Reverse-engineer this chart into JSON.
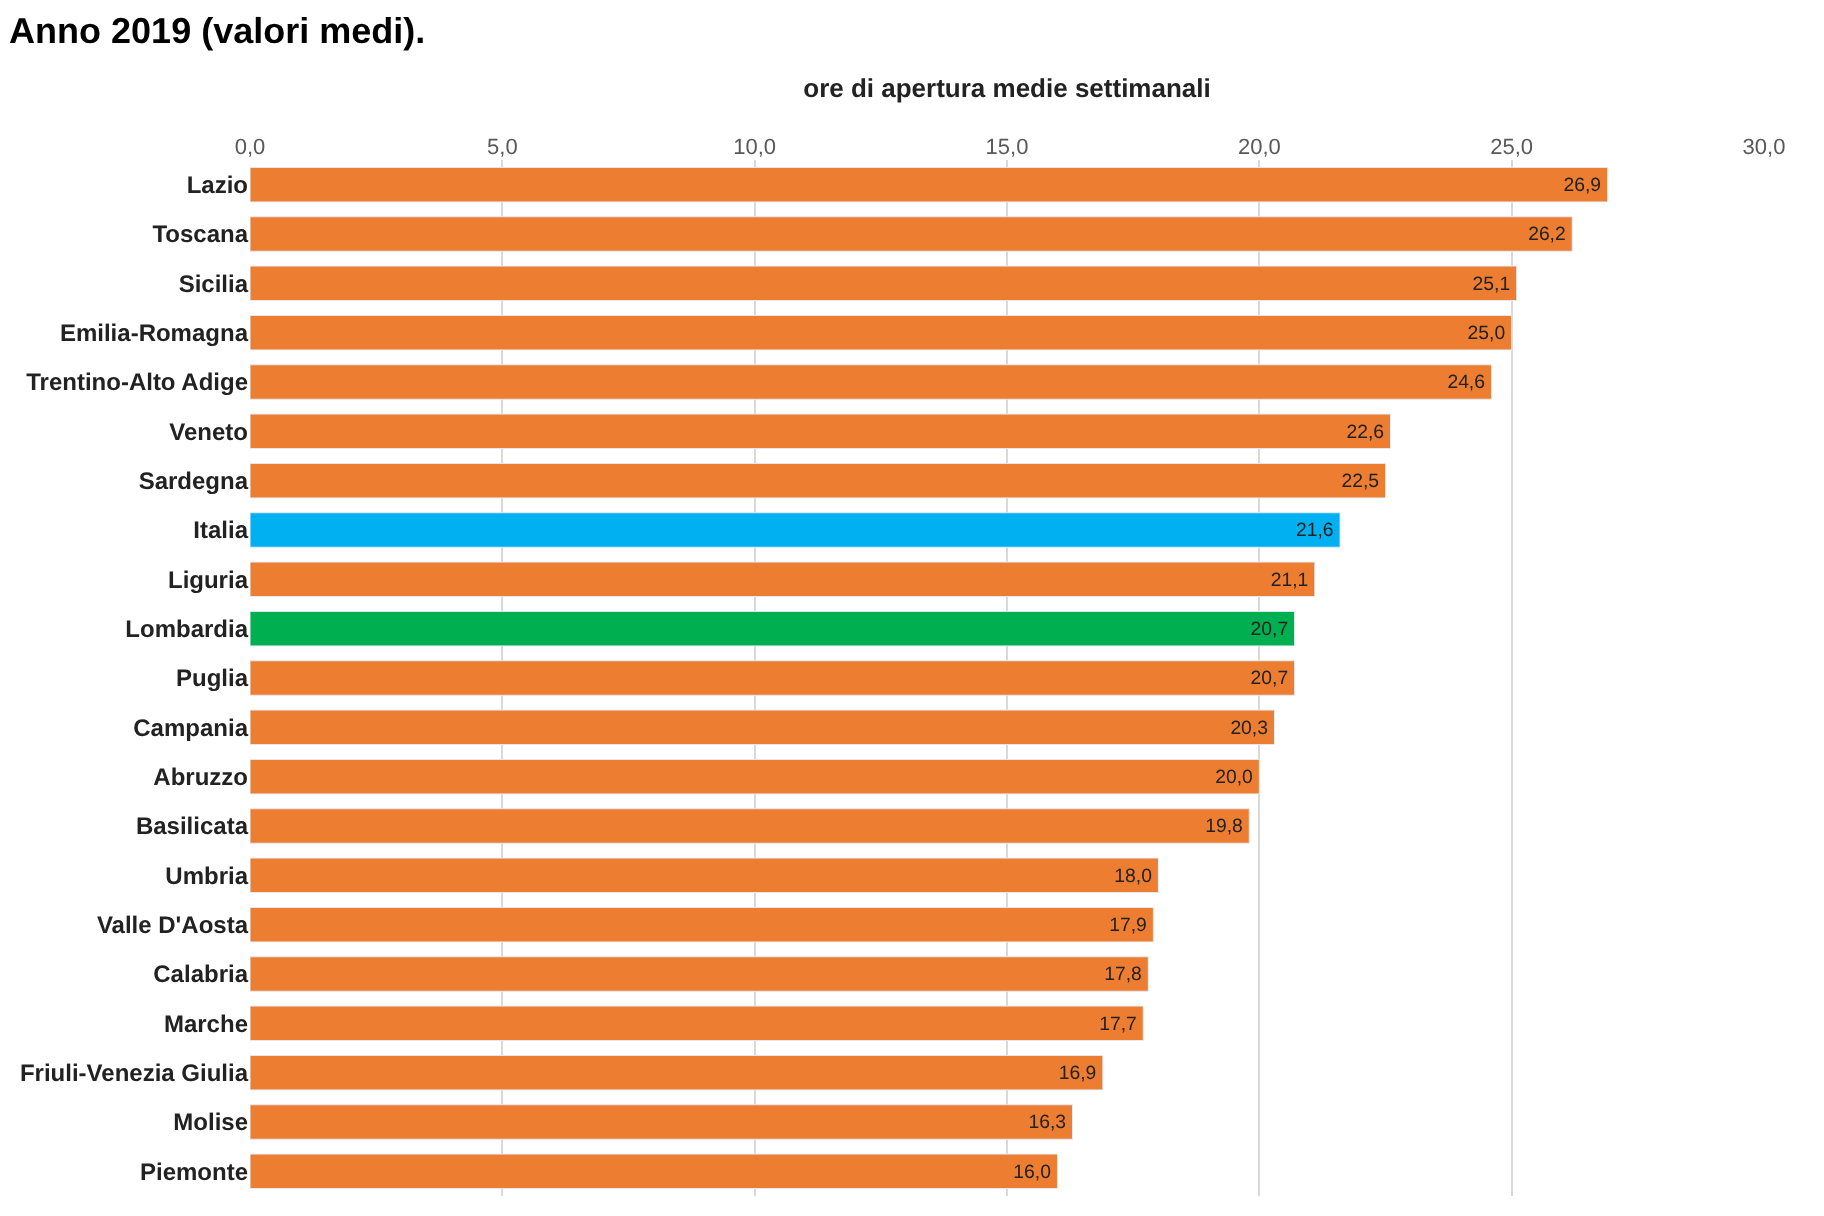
{
  "chart_data": {
    "type": "bar",
    "orientation": "horizontal",
    "title": "Anno 2019 (valori medi).",
    "xlabel": "ore di apertura medie settimanali",
    "categories": [
      "Lazio",
      "Toscana",
      "Sicilia",
      "Emilia-Romagna",
      "Trentino-Alto Adige",
      "Veneto",
      "Sardegna",
      "Italia",
      "Liguria",
      "Lombardia",
      "Puglia",
      "Campania",
      "Abruzzo",
      "Basilicata",
      "Umbria",
      "Valle D'Aosta",
      "Calabria",
      "Marche",
      "Friuli-Venezia Giulia",
      "Molise",
      "Piemonte"
    ],
    "values": [
      26.9,
      26.2,
      25.1,
      25.0,
      24.6,
      22.6,
      22.5,
      21.6,
      21.1,
      20.7,
      20.7,
      20.3,
      20.0,
      19.8,
      18.0,
      17.9,
      17.8,
      17.7,
      16.9,
      16.3,
      16.0
    ],
    "value_labels": [
      "26,9",
      "26,2",
      "25,1",
      "25,0",
      "24,6",
      "22,6",
      "22,5",
      "21,6",
      "21,1",
      "20,7",
      "20,7",
      "20,3",
      "20,0",
      "19,8",
      "18,0",
      "17,9",
      "17,8",
      "17,7",
      "16,9",
      "16,3",
      "16,0"
    ],
    "colors": [
      "#ed7d31",
      "#ed7d31",
      "#ed7d31",
      "#ed7d31",
      "#ed7d31",
      "#ed7d31",
      "#ed7d31",
      "#00b0f0",
      "#ed7d31",
      "#00b050",
      "#ed7d31",
      "#ed7d31",
      "#ed7d31",
      "#ed7d31",
      "#ed7d31",
      "#ed7d31",
      "#ed7d31",
      "#ed7d31",
      "#ed7d31",
      "#ed7d31",
      "#ed7d31"
    ],
    "xlim": [
      0,
      30
    ],
    "xticks": [
      {
        "value": 0,
        "label": "0,0"
      },
      {
        "value": 5,
        "label": "5,0"
      },
      {
        "value": 10,
        "label": "10,0"
      },
      {
        "value": 15,
        "label": "15,0"
      },
      {
        "value": 20,
        "label": "20,0"
      },
      {
        "value": 25,
        "label": "25,0"
      },
      {
        "value": 30,
        "label": "30,0"
      }
    ],
    "grid": "x"
  }
}
